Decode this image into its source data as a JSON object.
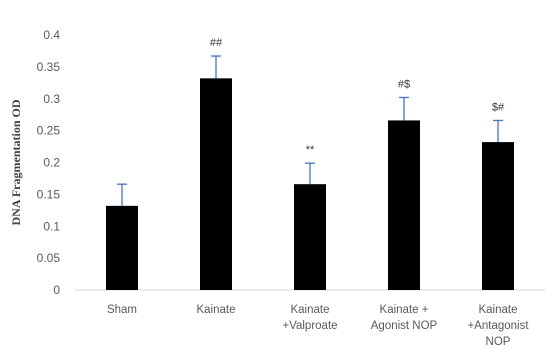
{
  "chart_data": {
    "type": "bar",
    "title": "",
    "xlabel": "",
    "ylabel": "DNA Fragmentation OD",
    "ylim": [
      0,
      0.4
    ],
    "yticks": [
      "0",
      "0.05",
      "0.1",
      "0.15",
      "0.2",
      "0.25",
      "0.3",
      "0.35",
      "0.4"
    ],
    "categories": [
      [
        "Sham"
      ],
      [
        "Kainate"
      ],
      [
        "Kainate",
        "+Valproate"
      ],
      [
        "Kainate +",
        "Agonist NOP"
      ],
      [
        "Kainate",
        "+Antagonist",
        "NOP"
      ]
    ],
    "values": [
      0.132,
      0.332,
      0.166,
      0.266,
      0.232
    ],
    "errors": [
      0.034,
      0.035,
      0.033,
      0.036,
      0.034
    ],
    "significance": [
      "",
      "##",
      "**",
      "#$",
      "$#"
    ],
    "grid": false,
    "colors": {
      "bar": "#000000",
      "error_bar": "#4472c4",
      "axis": "#d9d9d9"
    }
  }
}
